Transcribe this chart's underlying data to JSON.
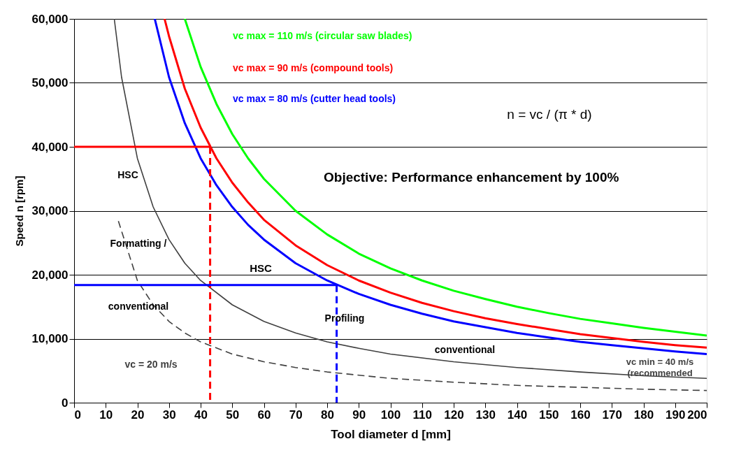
{
  "chart_data": {
    "type": "line",
    "xlabel": "Tool diameter d [mm]",
    "ylabel": "Speed n [rpm]",
    "xlim": [
      0,
      200
    ],
    "ylim": [
      0,
      60000
    ],
    "xticks": [
      0,
      10,
      20,
      30,
      40,
      50,
      60,
      70,
      80,
      90,
      100,
      110,
      120,
      130,
      140,
      150,
      160,
      170,
      180,
      190,
      200
    ],
    "yticks": [
      {
        "value": 0,
        "label": "0"
      },
      {
        "value": 10000,
        "label": "10,000"
      },
      {
        "value": 20000,
        "label": "20,000"
      },
      {
        "value": 30000,
        "label": "30,000"
      },
      {
        "value": 40000,
        "label": "40,000"
      },
      {
        "value": 50000,
        "label": "50,000"
      },
      {
        "value": 60000,
        "label": "60,000"
      }
    ],
    "grid": "y",
    "series": [
      {
        "name": "vc max = 110 m/s (circular saw blades)",
        "color": "#00ff00",
        "line_style": "solid",
        "x": [
          35,
          40,
          45,
          50,
          55,
          60,
          70,
          80,
          90,
          100,
          110,
          120,
          130,
          140,
          150,
          160,
          170,
          180,
          190,
          200
        ],
        "values": [
          60000,
          52500,
          46700,
          42000,
          38200,
          35000,
          30000,
          26300,
          23300,
          21000,
          19100,
          17500,
          16200,
          15000,
          14000,
          13100,
          12400,
          11700,
          11100,
          10500
        ]
      },
      {
        "name": "vc max = 90 m/s (compound tools)",
        "color": "#ff0000",
        "line_style": "solid",
        "x": [
          28.6,
          30,
          35,
          40,
          45,
          50,
          55,
          60,
          70,
          80,
          90,
          100,
          110,
          120,
          130,
          140,
          150,
          160,
          170,
          180,
          190,
          200
        ],
        "values": [
          60000,
          57300,
          49100,
          43000,
          38200,
          34400,
          31300,
          28600,
          24600,
          21500,
          19100,
          17200,
          15600,
          14300,
          13200,
          12300,
          11500,
          10700,
          10100,
          9500,
          9000,
          8600
        ]
      },
      {
        "name": "vc max = 80 m/s (cutter head tools)",
        "color": "#0000ff",
        "line_style": "solid",
        "x": [
          25.5,
          30,
          35,
          40,
          45,
          50,
          55,
          60,
          70,
          80,
          90,
          100,
          110,
          120,
          130,
          140,
          150,
          160,
          170,
          180,
          190,
          200
        ],
        "values": [
          60000,
          50900,
          43700,
          38200,
          34000,
          30600,
          27800,
          25500,
          21800,
          19100,
          17000,
          15300,
          13900,
          12700,
          11800,
          10900,
          10200,
          9500,
          9000,
          8500,
          8000,
          7600
        ]
      },
      {
        "name": "vc min = 40 m/s\n(recommended",
        "color": "#404040",
        "line_style": "solid",
        "x": [
          12.7,
          15,
          20,
          25,
          30,
          35,
          40,
          50,
          60,
          70,
          80,
          90,
          100,
          120,
          140,
          160,
          180,
          200
        ],
        "values": [
          60000,
          50900,
          38200,
          30600,
          25500,
          21800,
          19100,
          15300,
          12700,
          10900,
          9500,
          8500,
          7600,
          6400,
          5500,
          4800,
          4200,
          3800
        ]
      },
      {
        "name": "vc = 20 m/s",
        "color": "#404040",
        "line_style": "dashed",
        "x": [
          14,
          20,
          25,
          30,
          35,
          40,
          50,
          60,
          70,
          80,
          100,
          120,
          140,
          160,
          180,
          200
        ],
        "values": [
          28400,
          19100,
          15300,
          12700,
          10900,
          9500,
          7600,
          6400,
          5500,
          4800,
          3800,
          3200,
          2700,
          2400,
          2100,
          1900
        ]
      },
      {
        "color": "#ff0000",
        "line_style": "solid",
        "x": [
          0,
          43
        ],
        "values": [
          40000,
          40000
        ]
      },
      {
        "color": "#ff0000",
        "line_style": "dashed",
        "x": [
          43,
          43
        ],
        "values": [
          40000,
          0
        ]
      },
      {
        "color": "#0000ff",
        "line_style": "solid",
        "x": [
          0,
          83
        ],
        "values": [
          18400,
          18400
        ]
      },
      {
        "color": "#0000ff",
        "line_style": "dashed",
        "x": [
          83,
          83
        ],
        "values": [
          18400,
          0
        ]
      }
    ],
    "annotations": [
      "n = vc / (π * d)",
      "Objective: Performance enhancement by 100%",
      "HSC",
      "Formatting /",
      "conventional",
      "HSC",
      "Profiling",
      "conventional"
    ]
  }
}
